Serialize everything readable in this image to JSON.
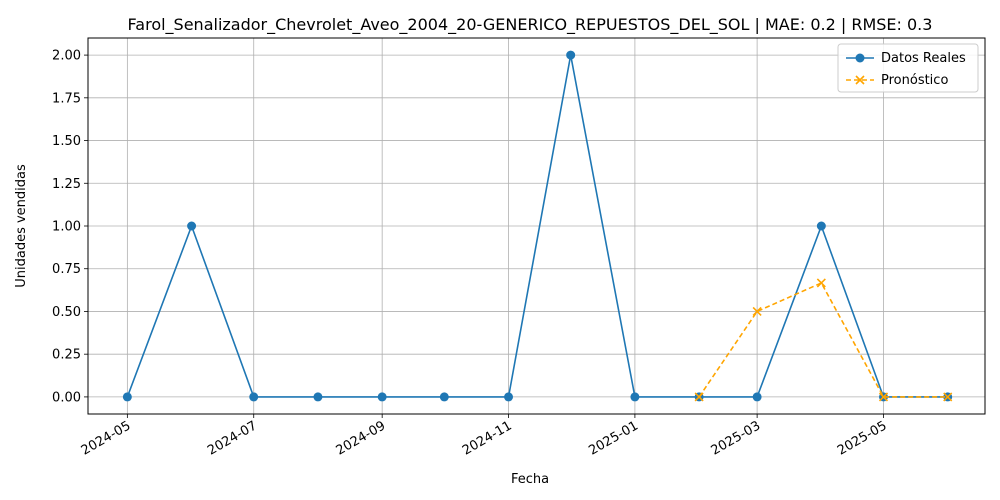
{
  "chart_data": {
    "type": "line",
    "title": "Farol_Senalizador_Chevrolet_Aveo_2004_20-GENERICO_REPUESTOS_DEL_SOL | MAE: 0.2 | RMSE: 0.3",
    "xlabel": "Fecha",
    "ylabel": "Unidades vendidas",
    "xlim": [
      "2024-04-12",
      "2025-06-19"
    ],
    "ylim": [
      -0.1,
      2.1
    ],
    "grid": true,
    "legend_position": "top-right",
    "x_ticks": [
      "2024-05",
      "2024-07",
      "2024-09",
      "2024-11",
      "2025-01",
      "2025-03",
      "2025-05"
    ],
    "y_ticks": [
      "0.00",
      "0.25",
      "0.50",
      "0.75",
      "1.00",
      "1.25",
      "1.50",
      "1.75",
      "2.00"
    ],
    "series": [
      {
        "name": "Datos Reales",
        "color": "#1f77b4",
        "style": "solid",
        "marker": "circle",
        "x": [
          "2024-05-01",
          "2024-06-01",
          "2024-07-01",
          "2024-08-01",
          "2024-09-01",
          "2024-10-01",
          "2024-11-01",
          "2024-12-01",
          "2025-01-01",
          "2025-02-01",
          "2025-03-01",
          "2025-04-01",
          "2025-05-01",
          "2025-06-01"
        ],
        "values": [
          0,
          1,
          0,
          0,
          0,
          0,
          0,
          2,
          0,
          0,
          0,
          1,
          0,
          0
        ]
      },
      {
        "name": "Pronóstico",
        "color": "#ffa500",
        "style": "dashed",
        "marker": "x",
        "x": [
          "2025-02-01",
          "2025-03-01",
          "2025-04-01",
          "2025-05-01",
          "2025-06-01"
        ],
        "values": [
          0,
          0.5,
          0.6667,
          0,
          0
        ]
      }
    ]
  }
}
